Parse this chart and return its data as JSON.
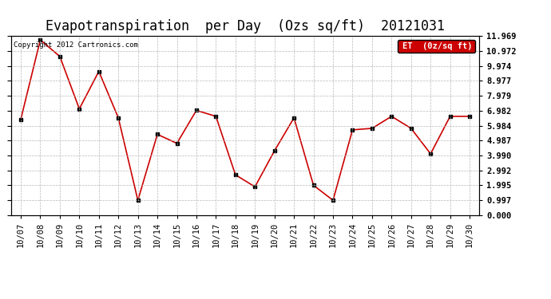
{
  "title": "Evapotranspiration  per Day  (Ozs sq/ft)  20121031",
  "copyright": "Copyright 2012 Cartronics.com",
  "legend_label": "ET  (0z/sq ft)",
  "x_labels": [
    "10/07",
    "10/08",
    "10/09",
    "10/10",
    "10/11",
    "10/12",
    "10/13",
    "10/14",
    "10/15",
    "10/16",
    "10/17",
    "10/18",
    "10/19",
    "10/20",
    "10/21",
    "10/22",
    "10/23",
    "10/24",
    "10/25",
    "10/26",
    "10/27",
    "10/28",
    "10/29",
    "10/30"
  ],
  "y_values": [
    6.4,
    11.7,
    10.6,
    7.1,
    9.6,
    6.5,
    1.0,
    5.4,
    4.8,
    7.0,
    6.6,
    2.7,
    1.9,
    4.3,
    6.5,
    2.0,
    1.0,
    5.7,
    5.8,
    6.6,
    5.8,
    4.1,
    6.6,
    6.6
  ],
  "line_color": "#cc0000",
  "marker_color": "#000000",
  "background_color": "#ffffff",
  "grid_color": "#b0b0b0",
  "ylim": [
    0.0,
    11.969
  ],
  "yticks": [
    0.0,
    0.997,
    1.995,
    2.992,
    3.99,
    4.987,
    5.984,
    6.982,
    7.979,
    8.977,
    9.974,
    10.972,
    11.969
  ],
  "legend_bg": "#cc0000",
  "legend_text_color": "#ffffff",
  "title_fontsize": 12,
  "tick_fontsize": 7.5,
  "copyright_fontsize": 6.5
}
